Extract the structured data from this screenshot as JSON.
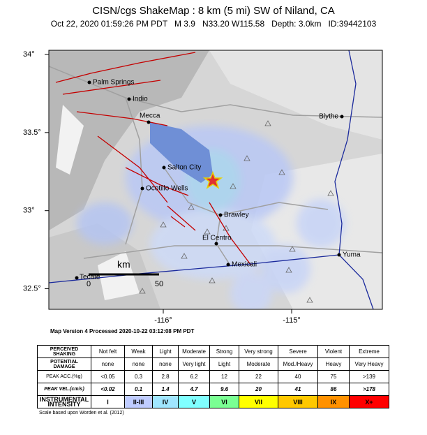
{
  "header": {
    "title": "CISN/cgs ShakeMap : 8 km (5 mi) SW of Niland, CA",
    "subtitle": "Oct 22, 2020 01:59:26 PM PDT   M 3.9   N33.20 W115.58   Depth: 3.0km   ID:39442103"
  },
  "map": {
    "lat_ticks": [
      {
        "value": 34,
        "label": "34°"
      },
      {
        "value": 33.5,
        "label": "33.5°"
      },
      {
        "value": 33,
        "label": "33°"
      },
      {
        "value": 32.5,
        "label": "32.5°"
      }
    ],
    "lon_ticks": [
      {
        "value": -116,
        "label": "-116°"
      },
      {
        "value": -115,
        "label": "-115°"
      }
    ],
    "cities": [
      "Palm Springs",
      "Indio",
      "Mecca",
      "Blythe",
      "Salton City",
      "Ocotillo Wells",
      "Brawley",
      "El Centro",
      "Mexicali",
      "Yuma",
      "Tecate"
    ],
    "scale_unit": "km",
    "scale_ticks": [
      0,
      50
    ],
    "version": "Map Version 4 Processed 2020-10-22 03:12:08 PM PDT"
  },
  "table": {
    "rows": [
      {
        "label": "PERCEIVED SHAKING",
        "cells": [
          "Not felt",
          "Weak",
          "Light",
          "Moderate",
          "Strong",
          "Very strong",
          "Severe",
          "Violent",
          "Extreme"
        ]
      },
      {
        "label": "POTENTIAL DAMAGE",
        "cells": [
          "none",
          "none",
          "none",
          "Very light",
          "Light",
          "Moderate",
          "Mod./Heavy",
          "Heavy",
          "Very Heavy"
        ]
      },
      {
        "label": "PEAK ACC.(%g)",
        "cells": [
          "<0.05",
          "0.3",
          "2.8",
          "6.2",
          "12",
          "22",
          "40",
          "75",
          ">139"
        ]
      },
      {
        "label": "PEAK VEL.(cm/s)",
        "cells": [
          "<0.02",
          "0.1",
          "1.4",
          "4.7",
          "9.6",
          "20",
          "41",
          "86",
          ">178"
        ]
      },
      {
        "label": "INSTRUMENTAL INTENSITY",
        "cells": [
          "I",
          "II-III",
          "IV",
          "V",
          "VI",
          "VII",
          "VIII",
          "IX",
          "X+"
        ]
      }
    ],
    "intensity_colors": [
      "#ffffff",
      "#bfccff",
      "#a0e6ff",
      "#80ffff",
      "#7aff93",
      "#ffff00",
      "#ffc800",
      "#ff9100",
      "#ff0000"
    ],
    "footnote": "Scale based upon Worden et al. (2012)"
  }
}
